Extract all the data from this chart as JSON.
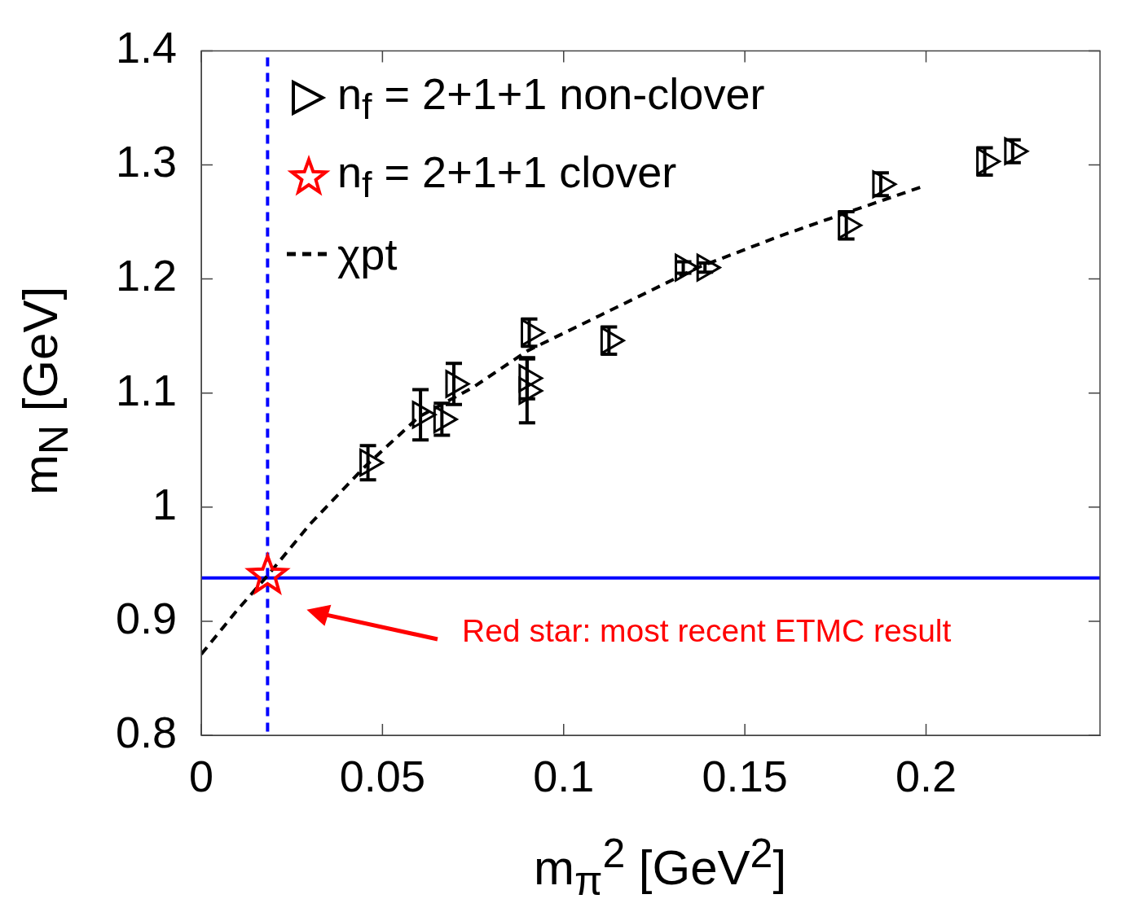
{
  "chart_data": {
    "type": "scatter",
    "xlabel": "m$_{π}$$^{2}$ [GeV$^{2}$]",
    "ylabel": "m$_{N}$ [GeV]",
    "xlim": [
      0,
      0.248
    ],
    "xticks": [
      0,
      0.05,
      0.1,
      0.15,
      0.2
    ],
    "ylim": [
      0.8,
      1.4
    ],
    "yticks": [
      0.8,
      0.9,
      1,
      1.1,
      1.2,
      1.3,
      1.4
    ],
    "grid": false,
    "legend": "top left",
    "series": [
      {
        "name": "n$_{f}$ = 2+1+1 non-clover",
        "type": "scatter",
        "marker": "triangle",
        "color": "#000000",
        "x": [
          0.046,
          0.0605,
          0.0664,
          0.0697,
          0.0899,
          0.0899,
          0.0905,
          0.1125,
          0.133,
          0.139,
          0.178,
          0.1875,
          0.2162,
          0.2239
        ],
        "values": [
          1.039,
          1.081,
          1.077,
          1.108,
          1.113,
          1.102,
          1.153,
          1.146,
          1.21,
          1.21,
          1.247,
          1.283,
          1.303,
          1.312
        ],
        "errors": [
          0.015,
          0.022,
          0.014,
          0.018,
          0.018,
          0.028,
          0.012,
          0.012,
          0.005,
          0.004,
          0.012,
          0.01,
          0.012,
          0.01
        ]
      },
      {
        "name": "n$_{f}$ = 2+1+1 clover",
        "type": "scatter",
        "marker": "star",
        "color": "#ff0000",
        "x": [
          0.0183
        ],
        "values": [
          0.94
        ]
      },
      {
        "name": "χpt",
        "type": "line",
        "marker": "none",
        "line_style": "dashed",
        "color": "#000000",
        "x": [
          0,
          0.01,
          0.0183,
          0.03,
          0.045,
          0.06,
          0.075,
          0.09,
          0.11,
          0.137,
          0.16,
          0.178,
          0.199
        ],
        "values": [
          0.871,
          0.91,
          0.94,
          0.985,
          1.035,
          1.079,
          1.105,
          1.137,
          1.168,
          1.21,
          1.238,
          1.258,
          1.281
        ]
      }
    ],
    "ref_lines": [
      {
        "axis": "x",
        "value": 0.0183,
        "color": "#0000ff",
        "line_style": "dashed"
      },
      {
        "axis": "y",
        "value": 0.938,
        "color": "#0000ff",
        "line_style": "solid"
      }
    ],
    "annotations": [
      "Red star: most recent ETMC result"
    ]
  }
}
